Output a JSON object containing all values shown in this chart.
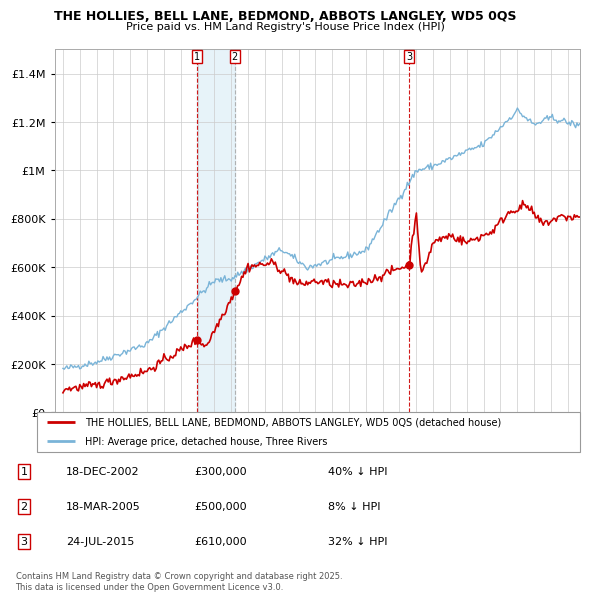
{
  "title": "THE HOLLIES, BELL LANE, BEDMOND, ABBOTS LANGLEY, WD5 0QS",
  "subtitle": "Price paid vs. HM Land Registry's House Price Index (HPI)",
  "legend_line1": "THE HOLLIES, BELL LANE, BEDMOND, ABBOTS LANGLEY, WD5 0QS (detached house)",
  "legend_line2": "HPI: Average price, detached house, Three Rivers",
  "footer": "Contains HM Land Registry data © Crown copyright and database right 2025.\nThis data is licensed under the Open Government Licence v3.0.",
  "transactions": [
    {
      "num": 1,
      "date": "18-DEC-2002",
      "price": 300000,
      "hpi_pct": "40% ↓ HPI",
      "year": 2002.96,
      "vline_style": "red_dashed"
    },
    {
      "num": 2,
      "date": "18-MAR-2005",
      "price": 500000,
      "hpi_pct": "8% ↓ HPI",
      "year": 2005.21,
      "vline_style": "gray_dashed"
    },
    {
      "num": 3,
      "date": "24-JUL-2015",
      "price": 610000,
      "hpi_pct": "32% ↓ HPI",
      "year": 2015.56,
      "vline_style": "red_dashed"
    }
  ],
  "hpi_color": "#7ab4d8",
  "price_color": "#cc0000",
  "shade_color": "#d0e8f5",
  "ylim": [
    0,
    1500000
  ],
  "xlim_start": 1994.5,
  "xlim_end": 2025.7
}
